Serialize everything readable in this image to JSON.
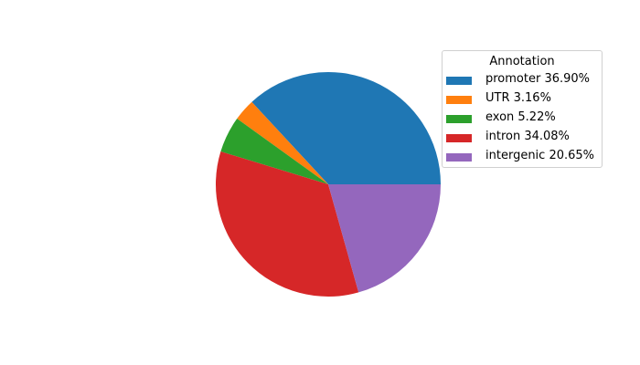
{
  "chart_data": {
    "type": "pie",
    "categories": [
      "promoter",
      "UTR",
      "exon",
      "intron",
      "intergenic"
    ],
    "values": [
      36.9,
      3.16,
      5.22,
      34.08,
      20.65
    ],
    "colors": [
      "#1f77b4",
      "#ff7f0e",
      "#2ca02c",
      "#d62728",
      "#9467bd"
    ],
    "start_angle_deg": 0,
    "direction": "counterclockwise",
    "legend": {
      "title": "Annotation",
      "placement": "upper-right",
      "labels": [
        "promoter 36.90%",
        "UTR 3.16%",
        "exon 5.22%",
        "intron 34.08%",
        "intergenic 20.65%"
      ]
    }
  }
}
